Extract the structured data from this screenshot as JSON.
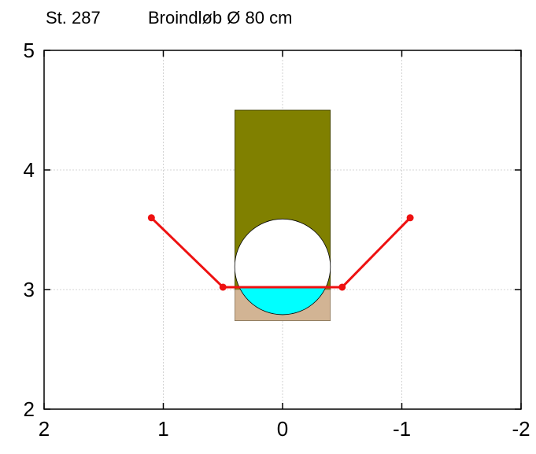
{
  "title": {
    "station": "St. 287",
    "description": "Broindløb Ø 80 cm"
  },
  "chart_data": {
    "type": "cross-section",
    "x_axis": {
      "range": [
        2,
        -2
      ],
      "reversed": true,
      "ticks": [
        2,
        1,
        0,
        -1,
        -2
      ],
      "tick_labels": [
        "2",
        "1",
        "0",
        "-1",
        "-2"
      ]
    },
    "y_axis": {
      "range": [
        2,
        5
      ],
      "ticks": [
        2,
        3,
        4,
        5
      ],
      "tick_labels": [
        "2",
        "3",
        "4",
        "5"
      ]
    },
    "grid": true,
    "elements": {
      "culvert_box": {
        "x": [
          -0.4,
          0.4
        ],
        "y": [
          2.74,
          4.5
        ],
        "color": "#808000"
      },
      "bed_fill": {
        "x": [
          -0.4,
          0.4
        ],
        "y": [
          2.74,
          3.0
        ],
        "color": "#d2b494"
      },
      "pipe": {
        "center_x": 0,
        "center_y": 3.19,
        "diameter": 0.8,
        "color": "#ffffff"
      },
      "water": {
        "level": 3.02,
        "color": "#00ffff"
      },
      "terrain_profile": {
        "color": "#ee1111",
        "points": [
          {
            "x": 1.1,
            "y": 3.6
          },
          {
            "x": 0.5,
            "y": 3.02
          },
          {
            "x": -0.5,
            "y": 3.02
          },
          {
            "x": -1.07,
            "y": 3.6
          }
        ]
      }
    }
  }
}
